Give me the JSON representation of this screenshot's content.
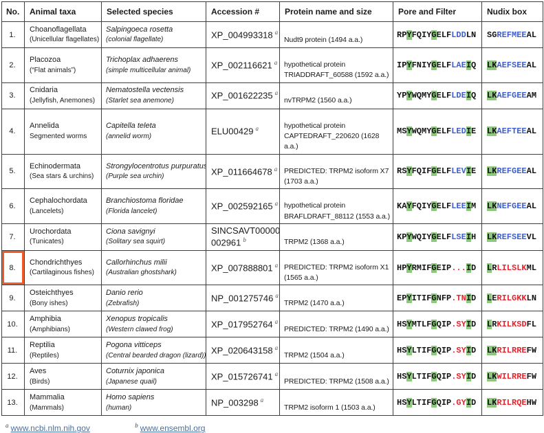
{
  "table": {
    "headers": [
      "No.",
      "Animal taxa",
      "Selected species",
      "Accession #",
      "Protein name and size",
      "Pore and Filter",
      "Nudix box"
    ],
    "rows": [
      {
        "no": "1.",
        "taxa": "Choanoflagellata",
        "taxa_sub": "(Unicellular flagellates)",
        "species": "Salpingoeca rosetta",
        "species_sub": "(colonial flagellate)",
        "accession": "XP_004993318",
        "accession_sup": "a",
        "protein": "Nudt9 protein (1494 a.a.)",
        "pore": [
          {
            "t": "RP",
            "c": "black"
          },
          {
            "t": "Y",
            "c": "black",
            "h": true
          },
          {
            "t": "FQIY",
            "c": "black"
          },
          {
            "t": "G",
            "c": "black",
            "h": true
          },
          {
            "t": "ELF",
            "c": "black"
          },
          {
            "t": "LDD",
            "c": "blue"
          },
          {
            "t": "LN",
            "c": "black"
          }
        ],
        "nudix": [
          {
            "t": "SG",
            "c": "black"
          },
          {
            "t": "REFMEE",
            "c": "blue"
          },
          {
            "t": "AL",
            "c": "black"
          }
        ]
      },
      {
        "no": "2.",
        "taxa": "Placozoa",
        "taxa_sub": "(“Flat animals”)",
        "species": "Trichoplax adhaerens",
        "species_sub": "(simple multicellular animal)",
        "accession": "XP_002116621",
        "accession_sup": "a",
        "protein": "hypothetical protein\nTRIADDRAFT_60588 (1592 a.a.)",
        "pore": [
          {
            "t": "IP",
            "c": "black"
          },
          {
            "t": "Y",
            "c": "black",
            "h": true
          },
          {
            "t": "FNIY",
            "c": "black"
          },
          {
            "t": "G",
            "c": "black",
            "h": true
          },
          {
            "t": "ELF",
            "c": "black"
          },
          {
            "t": "LAE",
            "c": "blue"
          },
          {
            "t": "I",
            "c": "black",
            "h": true
          },
          {
            "t": "Q",
            "c": "black"
          }
        ],
        "nudix": [
          {
            "t": "LK",
            "c": "black",
            "h": true
          },
          {
            "t": "AEFSEE",
            "c": "blue"
          },
          {
            "t": "AL",
            "c": "black"
          }
        ]
      },
      {
        "no": "3.",
        "taxa": "Cnidaria",
        "taxa_sub": "(Jellyfish, Anemones)",
        "species": "Nematostella vectensis",
        "species_sub": "(Starlet sea anemone)",
        "accession": "XP_001622235",
        "accession_sup": "a",
        "protein": "nvTRPM2 (1560 a.a.)",
        "pore": [
          {
            "t": "YP",
            "c": "black"
          },
          {
            "t": "Y",
            "c": "black",
            "h": true
          },
          {
            "t": "WQMY",
            "c": "black"
          },
          {
            "t": "G",
            "c": "black",
            "h": true
          },
          {
            "t": "ELF",
            "c": "black"
          },
          {
            "t": "LDE",
            "c": "blue"
          },
          {
            "t": "I",
            "c": "black",
            "h": true
          },
          {
            "t": "Q",
            "c": "black"
          }
        ],
        "nudix": [
          {
            "t": "LK",
            "c": "black",
            "h": true
          },
          {
            "t": "AEFGEE",
            "c": "blue"
          },
          {
            "t": "AM",
            "c": "black"
          }
        ]
      },
      {
        "no": "4.",
        "taxa": "Annelida",
        "taxa_sub": "Segmented worms",
        "species": "Capitella teleta",
        "species_sub": "(annelid worm)",
        "accession": "ELU00429",
        "accession_sup": "a",
        "protein": "hypothetical protein\nCAPTEDRAFT_220620 (1628 a.a.)",
        "pore": [
          {
            "t": "MS",
            "c": "black"
          },
          {
            "t": "Y",
            "c": "black",
            "h": true
          },
          {
            "t": "WQMY",
            "c": "black"
          },
          {
            "t": "G",
            "c": "black",
            "h": true
          },
          {
            "t": "ELF",
            "c": "black"
          },
          {
            "t": "LED",
            "c": "blue"
          },
          {
            "t": "I",
            "c": "black",
            "h": true
          },
          {
            "t": "E",
            "c": "black"
          }
        ],
        "nudix": [
          {
            "t": "LK",
            "c": "black",
            "h": true
          },
          {
            "t": "AEFTEE",
            "c": "blue"
          },
          {
            "t": "AL",
            "c": "black"
          }
        ]
      },
      {
        "no": "5.",
        "taxa": "Echinodermata",
        "taxa_sub": "(Sea stars & urchins)",
        "species": "Strongylocentrotus purpuratus",
        "species_sub": "(Purple sea urchin)",
        "accession": "XP_011664678",
        "accession_sup": "a",
        "protein": "PREDICTED: TRPM2 isoform X7\n(1703 a.a.)",
        "pore": [
          {
            "t": "RS",
            "c": "black"
          },
          {
            "t": "Y",
            "c": "black",
            "h": true
          },
          {
            "t": "FQIF",
            "c": "black"
          },
          {
            "t": "G",
            "c": "black",
            "h": true
          },
          {
            "t": "ELF",
            "c": "black"
          },
          {
            "t": "LEV",
            "c": "blue"
          },
          {
            "t": "I",
            "c": "black",
            "h": true
          },
          {
            "t": "E",
            "c": "black"
          }
        ],
        "nudix": [
          {
            "t": "LK",
            "c": "black",
            "h": true
          },
          {
            "t": "REFGEE",
            "c": "blue"
          },
          {
            "t": "AL",
            "c": "black"
          }
        ]
      },
      {
        "no": "6.",
        "taxa": "Cephalochordata",
        "taxa_sub": "(Lancelets)",
        "species": "Branchiostoma floridae",
        "species_sub": "(Florida lancelet)",
        "accession": "XP_002592165",
        "accession_sup": "a",
        "protein": "hypothetical protein\nBRAFLDRAFT_88112 (1553 a.a.)",
        "pore": [
          {
            "t": "KA",
            "c": "black"
          },
          {
            "t": "Y",
            "c": "black",
            "h": true
          },
          {
            "t": "FQIY",
            "c": "black"
          },
          {
            "t": "G",
            "c": "black",
            "h": true
          },
          {
            "t": "ELF",
            "c": "black"
          },
          {
            "t": "LEE",
            "c": "blue"
          },
          {
            "t": "I",
            "c": "black",
            "h": true
          },
          {
            "t": "M",
            "c": "black"
          }
        ],
        "nudix": [
          {
            "t": "LK",
            "c": "black",
            "h": true
          },
          {
            "t": "NEFGEE",
            "c": "blue"
          },
          {
            "t": "AL",
            "c": "black"
          }
        ]
      },
      {
        "no": "7.",
        "taxa": "Urochordata",
        "taxa_sub": "(Tunicates)",
        "species": "Ciona savignyi",
        "species_sub": "(Solitary sea squirt)",
        "accession": "SINCSAVT00000\n002961",
        "accession_sup": "b",
        "protein": "TRPM2 (1368 a.a.)",
        "pore": [
          {
            "t": "KP",
            "c": "black"
          },
          {
            "t": "Y",
            "c": "black",
            "h": true
          },
          {
            "t": "WQIY",
            "c": "black"
          },
          {
            "t": "G",
            "c": "black",
            "h": true
          },
          {
            "t": "ELF",
            "c": "black"
          },
          {
            "t": "LSE",
            "c": "blue"
          },
          {
            "t": "I",
            "c": "black",
            "h": true
          },
          {
            "t": "H",
            "c": "black"
          }
        ],
        "nudix": [
          {
            "t": "LK",
            "c": "black",
            "h": true
          },
          {
            "t": "REFSEE",
            "c": "blue"
          },
          {
            "t": "VL",
            "c": "black"
          }
        ]
      },
      {
        "no": "8.",
        "highlighted": true,
        "taxa": "Chondrichthyes",
        "taxa_sub": "(Cartilaginous fishes)",
        "species": "Callorhinchus milii",
        "species_sub": "(Australian ghostshark)",
        "accession": "XP_007888801",
        "accession_sup": "a",
        "protein": "PREDICTED: TRPM2 isoform X1\n(1565 a.a.)",
        "pore": [
          {
            "t": "HP",
            "c": "black"
          },
          {
            "t": "Y",
            "c": "black",
            "h": true
          },
          {
            "t": "RMIF",
            "c": "black"
          },
          {
            "t": "G",
            "c": "black",
            "h": true
          },
          {
            "t": "EIP",
            "c": "black"
          },
          {
            "t": "...",
            "c": "red"
          },
          {
            "t": "I",
            "c": "black",
            "h": true
          },
          {
            "t": "D",
            "c": "black"
          }
        ],
        "nudix": [
          {
            "t": "L",
            "c": "black",
            "h": true
          },
          {
            "t": "R",
            "c": "black"
          },
          {
            "t": "LILSLK",
            "c": "red"
          },
          {
            "t": "ML",
            "c": "black"
          }
        ]
      },
      {
        "no": "9.",
        "taxa": "Osteichthyes",
        "taxa_sub": "(Bony ishes)",
        "species": "Danio rerio",
        "species_sub": "(Zebrafish)",
        "accession": "NP_001275746",
        "accession_sup": "a",
        "protein": "TRPM2 (1470 a.a.)",
        "pore": [
          {
            "t": "EP",
            "c": "black"
          },
          {
            "t": "Y",
            "c": "black",
            "h": true
          },
          {
            "t": "ITIF",
            "c": "black"
          },
          {
            "t": "G",
            "c": "black",
            "h": true
          },
          {
            "t": "NFP",
            "c": "black"
          },
          {
            "t": ".TN",
            "c": "red"
          },
          {
            "t": "I",
            "c": "black",
            "h": true
          },
          {
            "t": "D",
            "c": "black"
          }
        ],
        "nudix": [
          {
            "t": "L",
            "c": "black",
            "h": true
          },
          {
            "t": "E",
            "c": "black"
          },
          {
            "t": "RILGKK",
            "c": "red"
          },
          {
            "t": "LN",
            "c": "black"
          }
        ]
      },
      {
        "no": "10.",
        "taxa": "Amphibia",
        "taxa_sub": "(Amphibians)",
        "species": "Xenopus tropicalis",
        "species_sub": "(Western clawed frog)",
        "accession": "XP_017952764",
        "accession_sup": "a",
        "protein": "PREDICTED: TRPM2 (1490 a.a.)",
        "pore": [
          {
            "t": "HS",
            "c": "black"
          },
          {
            "t": "Y",
            "c": "black",
            "h": true
          },
          {
            "t": "MTLF",
            "c": "black"
          },
          {
            "t": "G",
            "c": "black",
            "h": true
          },
          {
            "t": "QIP",
            "c": "black"
          },
          {
            "t": ".SY",
            "c": "red"
          },
          {
            "t": "I",
            "c": "black",
            "h": true
          },
          {
            "t": "D",
            "c": "black"
          }
        ],
        "nudix": [
          {
            "t": "L",
            "c": "black",
            "h": true
          },
          {
            "t": "R",
            "c": "black"
          },
          {
            "t": "KILKSD",
            "c": "red"
          },
          {
            "t": "FL",
            "c": "black"
          }
        ]
      },
      {
        "no": "11.",
        "taxa": "Reptilia",
        "taxa_sub": "(Reptiles)",
        "species": "Pogona vitticeps",
        "species_sub": "(Central bearded dragon (lizard))",
        "accession": "XP_020643158",
        "accession_sup": "a",
        "protein": "TRPM2 (1504 a.a.)",
        "pore": [
          {
            "t": "HS",
            "c": "black"
          },
          {
            "t": "Y",
            "c": "black",
            "h": true
          },
          {
            "t": "LTIF",
            "c": "black"
          },
          {
            "t": "G",
            "c": "black",
            "h": true
          },
          {
            "t": "QIP",
            "c": "black"
          },
          {
            "t": ".SY",
            "c": "red"
          },
          {
            "t": "I",
            "c": "black",
            "h": true
          },
          {
            "t": "D",
            "c": "black"
          }
        ],
        "nudix": [
          {
            "t": "LK",
            "c": "black",
            "h": true
          },
          {
            "t": "RILRRE",
            "c": "red"
          },
          {
            "t": "FW",
            "c": "black"
          }
        ]
      },
      {
        "no": "12.",
        "taxa": "Aves",
        "taxa_sub": "(Birds)",
        "species": "Coturnix japonica",
        "species_sub": "(Japanese quail)",
        "accession": "XP_015726741",
        "accession_sup": "a",
        "protein": "PREDICTED: TRPM2 (1508 a.a.)",
        "pore": [
          {
            "t": "HS",
            "c": "black"
          },
          {
            "t": "Y",
            "c": "black",
            "h": true
          },
          {
            "t": "LTIF",
            "c": "black"
          },
          {
            "t": "G",
            "c": "black",
            "h": true
          },
          {
            "t": "QIP",
            "c": "black"
          },
          {
            "t": ".SY",
            "c": "red"
          },
          {
            "t": "I",
            "c": "black",
            "h": true
          },
          {
            "t": "D",
            "c": "black"
          }
        ],
        "nudix": [
          {
            "t": "LK",
            "c": "black",
            "h": true
          },
          {
            "t": "WILRRE",
            "c": "red"
          },
          {
            "t": "FW",
            "c": "black"
          }
        ]
      },
      {
        "no": "13.",
        "taxa": "Mammalia",
        "taxa_sub": "(Mammals)",
        "species": "Homo sapiens",
        "species_sub": "(human)",
        "accession": "NP_003298",
        "accession_sup": "a",
        "protein": "TRPM2 isoform 1 (1503 a.a.)",
        "pore": [
          {
            "t": "HS",
            "c": "black"
          },
          {
            "t": "Y",
            "c": "black",
            "h": true
          },
          {
            "t": "LTIF",
            "c": "black"
          },
          {
            "t": "G",
            "c": "black",
            "h": true
          },
          {
            "t": "QIP",
            "c": "black"
          },
          {
            "t": ".GY",
            "c": "red"
          },
          {
            "t": "I",
            "c": "black",
            "h": true
          },
          {
            "t": "D",
            "c": "black"
          }
        ],
        "nudix": [
          {
            "t": "LK",
            "c": "black",
            "h": true
          },
          {
            "t": "RILRQE",
            "c": "red"
          },
          {
            "t": "HW",
            "c": "black"
          }
        ]
      }
    ]
  },
  "footnotes": [
    {
      "marker": "a",
      "link": "www.ncbi.nlm.nih.gov"
    },
    {
      "marker": "b",
      "link": "www.ensembl.org"
    }
  ],
  "colors": {
    "sequence_blue": "#3f5fce",
    "sequence_red": "#e8242e",
    "highlight_green": "#8cc97c",
    "row_highlight_orange": "#f15a29",
    "link_blue": "#4a70a0",
    "border_color": "#3d3d3d"
  }
}
